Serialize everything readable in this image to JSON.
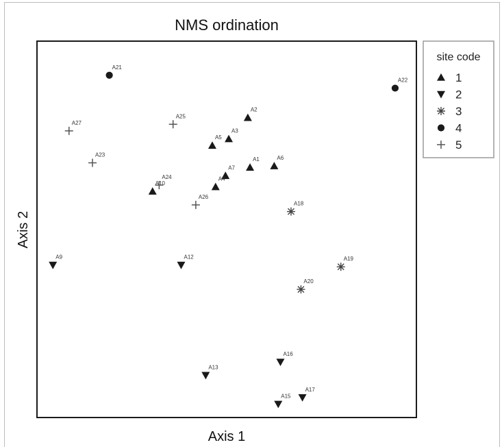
{
  "chart_data": {
    "type": "scatter",
    "title": "NMS ordination",
    "xlabel": "Axis 1",
    "ylabel": "Axis 2",
    "xlim": [
      0,
      100
    ],
    "ylim": [
      0,
      100
    ],
    "grid": false,
    "legend": {
      "title": "site code",
      "placement": "top-right, outside plot",
      "entries": [
        {
          "label": "1",
          "marker": "triangle-up"
        },
        {
          "label": "2",
          "marker": "triangle-down"
        },
        {
          "label": "3",
          "marker": "asterisk"
        },
        {
          "label": "4",
          "marker": "circle"
        },
        {
          "label": "5",
          "marker": "plus"
        }
      ]
    },
    "series": [
      {
        "name": "1",
        "marker": "triangle-up",
        "points": [
          {
            "label": "A2",
            "x": 55.3,
            "y": 83.7
          },
          {
            "label": "A3",
            "x": 50.1,
            "y": 77.6
          },
          {
            "label": "A5",
            "x": 45.6,
            "y": 75.7
          },
          {
            "label": "A1",
            "x": 55.9,
            "y": 69.4
          },
          {
            "label": "A6",
            "x": 62.5,
            "y": 69.8
          },
          {
            "label": "A7",
            "x": 49.2,
            "y": 67.0
          },
          {
            "label": "A4",
            "x": 46.5,
            "y": 63.8
          },
          {
            "label": "A10",
            "x": 29.3,
            "y": 62.5
          }
        ]
      },
      {
        "name": "2",
        "marker": "triangle-down",
        "points": [
          {
            "label": "A9",
            "x": 2.1,
            "y": 41.3
          },
          {
            "label": "A12",
            "x": 37.1,
            "y": 41.3
          },
          {
            "label": "A13",
            "x": 43.8,
            "y": 9.6
          },
          {
            "label": "A16",
            "x": 64.2,
            "y": 13.4
          },
          {
            "label": "A15",
            "x": 63.6,
            "y": 1.3
          },
          {
            "label": "A17",
            "x": 70.2,
            "y": 3.2
          }
        ]
      },
      {
        "name": "3",
        "marker": "asterisk",
        "points": [
          {
            "label": "A18",
            "x": 67.1,
            "y": 56.7
          },
          {
            "label": "A19",
            "x": 80.7,
            "y": 40.8
          },
          {
            "label": "A20",
            "x": 69.8,
            "y": 34.3
          }
        ]
      },
      {
        "name": "4",
        "marker": "circle",
        "points": [
          {
            "label": "A21",
            "x": 17.5,
            "y": 95.9
          },
          {
            "label": "A22",
            "x": 95.5,
            "y": 92.2
          }
        ]
      },
      {
        "name": "5",
        "marker": "plus",
        "points": [
          {
            "label": "A27",
            "x": 6.5,
            "y": 79.9
          },
          {
            "label": "A25",
            "x": 34.9,
            "y": 81.8
          },
          {
            "label": "A23",
            "x": 12.9,
            "y": 70.7
          },
          {
            "label": "A24",
            "x": 31.1,
            "y": 64.3
          },
          {
            "label": "A26",
            "x": 41.1,
            "y": 58.6
          }
        ]
      }
    ]
  }
}
